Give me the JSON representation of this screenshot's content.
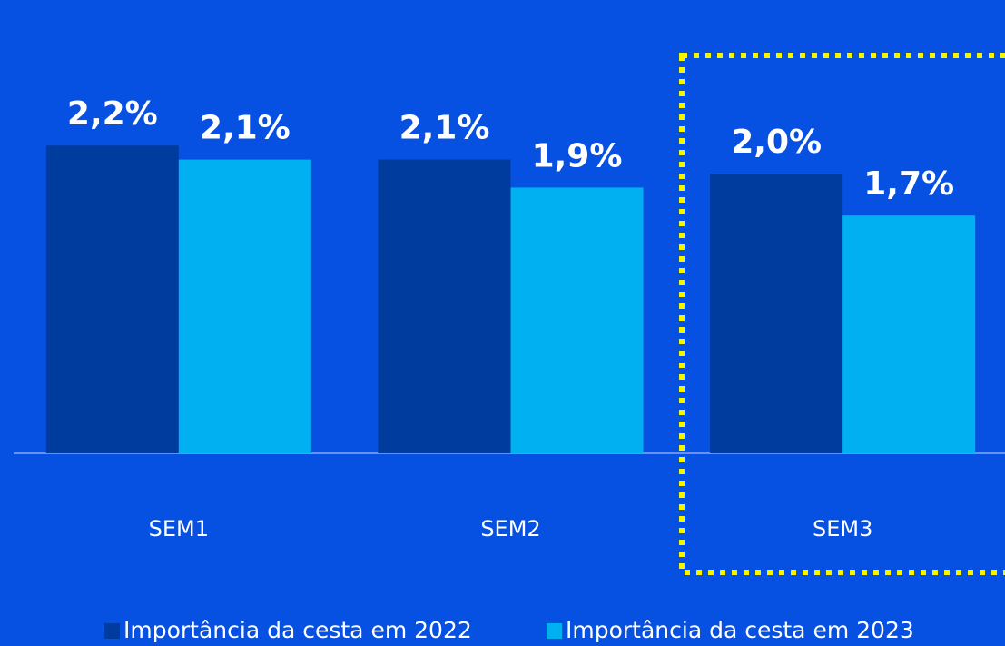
{
  "chart_data": {
    "type": "bar",
    "categories": [
      "SEM1",
      "SEM2",
      "SEM3"
    ],
    "series": [
      {
        "name": "Importância da cesta em 2022",
        "color": "#003c9e",
        "values": [
          2.2,
          2.1,
          2.0
        ],
        "value_labels": [
          "2,2%",
          "2,1%",
          "2,0%"
        ]
      },
      {
        "name": "Importância da cesta em 2023",
        "color": "#00b0f0",
        "values": [
          2.1,
          1.9,
          1.7
        ],
        "value_labels": [
          "2,1%",
          "1,9%",
          "1,7%"
        ]
      }
    ]
  }
}
